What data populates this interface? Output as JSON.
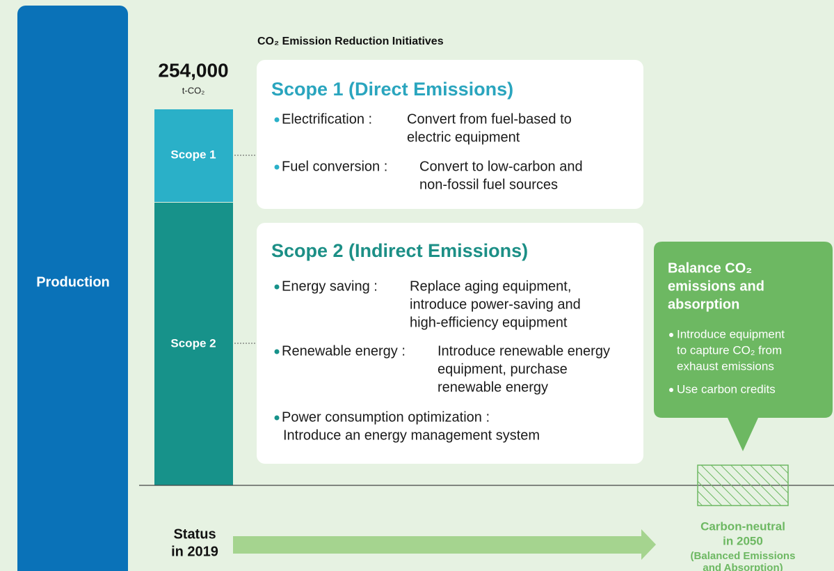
{
  "header": {
    "title": "CO₂ Emission Reduction Initiatives"
  },
  "total": {
    "value": "254,000",
    "unit": "t-CO₂"
  },
  "production": "Production",
  "bars": [
    "Scope 1",
    "Scope 2"
  ],
  "scopes": [
    {
      "title": "Scope 1 (Direct Emissions)",
      "items": [
        {
          "label": "Electrification :",
          "lines": [
            "Convert from fuel-based to",
            "electric equipment"
          ]
        },
        {
          "label": "Fuel conversion :",
          "lines": [
            "Convert to low-carbon and",
            "non-fossil fuel sources"
          ]
        }
      ]
    },
    {
      "title": "Scope 2 (Indirect Emissions)",
      "items": [
        {
          "label": "Energy saving :",
          "lines": [
            "Replace aging equipment,",
            "introduce power-saving and",
            "high-efficiency equipment"
          ]
        },
        {
          "label": "Renewable energy :",
          "lines": [
            "Introduce renewable energy",
            "equipment, purchase",
            "renewable energy"
          ]
        },
        {
          "label": "Power consumption optimization :",
          "lines": [
            "Introduce an energy management system"
          ]
        }
      ]
    }
  ],
  "callout": {
    "title": [
      "Balance CO₂",
      "emissions and",
      "absorption"
    ],
    "items": [
      [
        "Introduce equipment",
        "to capture CO₂ from",
        "exhaust emissions"
      ],
      [
        "Use carbon credits"
      ]
    ]
  },
  "baseline": [
    "Status",
    "in 2019"
  ],
  "target": [
    "Carbon-neutral",
    "in 2050",
    "(Balanced Emissions",
    "and Absorption)"
  ]
}
